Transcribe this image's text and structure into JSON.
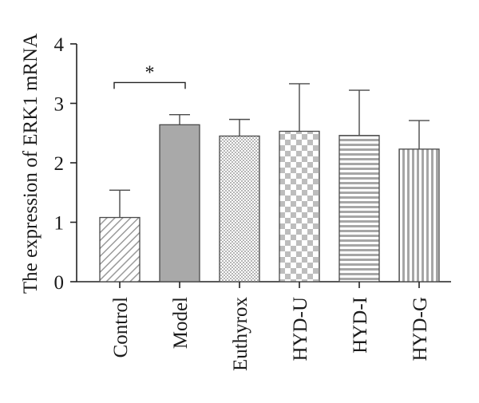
{
  "chart_data": {
    "type": "bar",
    "title": "",
    "xlabel": "",
    "ylabel": "The expression of ERK1 mRNA",
    "ylim": [
      0,
      4
    ],
    "yticks": [
      0,
      1,
      2,
      3,
      4
    ],
    "grid": false,
    "categories": [
      "Control",
      "Model",
      "Euthyrox",
      "HYD-U",
      "HYD-I",
      "HYD-G"
    ],
    "values": [
      1.08,
      2.64,
      2.45,
      2.53,
      2.46,
      2.23
    ],
    "error_upper": [
      0.46,
      0.17,
      0.28,
      0.8,
      0.76,
      0.48
    ],
    "bar_patterns": [
      "diagonal-hatch",
      "solid-gray",
      "fine-dots",
      "checkerboard",
      "horizontal-stripes",
      "vertical-stripes"
    ],
    "annotations": [
      {
        "text": "*",
        "from_category": "Control",
        "to_category": "Model",
        "y": 3.35
      }
    ]
  },
  "colors": {
    "bar_fill": "#a9a9a9",
    "bar_stroke": "#4a4a4a",
    "pattern_line": "#9a9a9a",
    "axis": "#222222"
  }
}
